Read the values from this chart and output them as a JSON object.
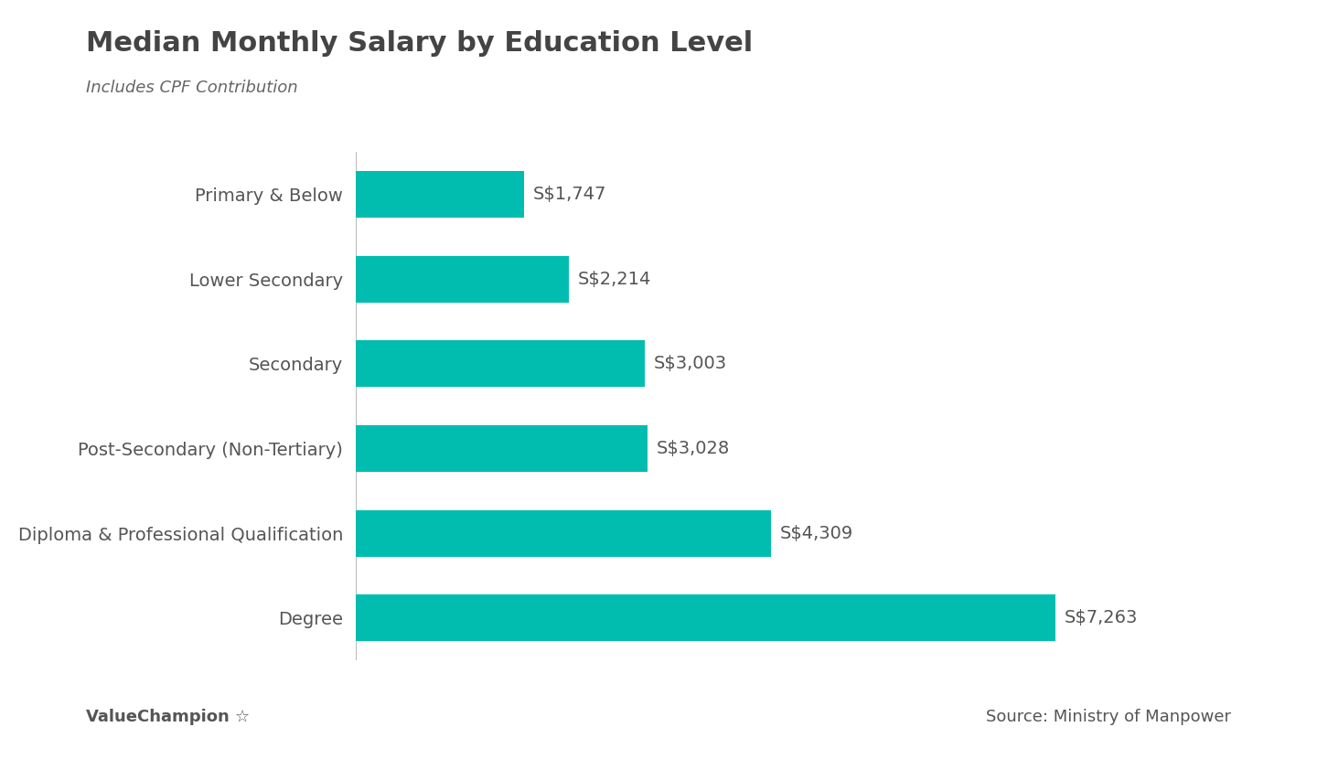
{
  "title": "Median Monthly Salary by Education Level",
  "subtitle": "Includes CPF Contribution",
  "categories": [
    "Primary & Below",
    "Lower Secondary",
    "Secondary",
    "Post-Secondary (Non-Tertiary)",
    "Diploma & Professional Qualification",
    "Degree"
  ],
  "values": [
    1747,
    2214,
    3003,
    3028,
    4309,
    7263
  ],
  "labels": [
    "S$1,747",
    "S$2,214",
    "S$3,003",
    "S$3,028",
    "S$4,309",
    "S$7,263"
  ],
  "bar_color": "#00BDB0",
  "background_color": "#ffffff",
  "text_color": "#555555",
  "title_fontsize": 22,
  "subtitle_fontsize": 13,
  "label_fontsize": 14,
  "tick_fontsize": 14,
  "footer_left": "ValueChampion ☆",
  "footer_right": "Source: Ministry of Manpower",
  "xlim": [
    0,
    8200
  ]
}
